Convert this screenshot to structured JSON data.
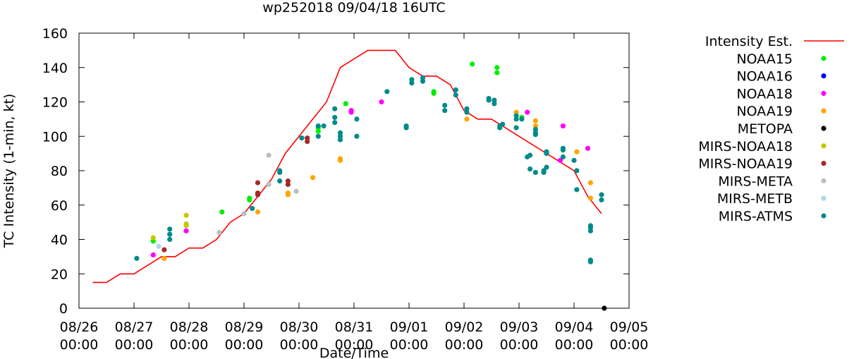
{
  "chart_data": {
    "type": "scatter",
    "title": "wp252018 09/04/18 16UTC",
    "xlabel": "Date/Time",
    "ylabel": "TC Intensity (1-min, kt)",
    "ylim": [
      0,
      160
    ],
    "yticks": [
      0,
      20,
      40,
      60,
      80,
      100,
      120,
      140,
      160
    ],
    "xlim": [
      0,
      10
    ],
    "x_unit": "days since 08/26 00:00",
    "xticks": [
      {
        "x": 0,
        "line1": "08/26",
        "line2": "00:00"
      },
      {
        "x": 1,
        "line1": "08/27",
        "line2": "00:00"
      },
      {
        "x": 2,
        "line1": "08/28",
        "line2": "00:00"
      },
      {
        "x": 3,
        "line1": "08/29",
        "line2": "00:00"
      },
      {
        "x": 4,
        "line1": "08/30",
        "line2": "00:00"
      },
      {
        "x": 5,
        "line1": "08/31",
        "line2": "00:00"
      },
      {
        "x": 6,
        "line1": "09/01",
        "line2": "00:00"
      },
      {
        "x": 7,
        "line1": "09/02",
        "line2": "00:00"
      },
      {
        "x": 8,
        "line1": "09/03",
        "line2": "00:00"
      },
      {
        "x": 9,
        "line1": "09/04",
        "line2": "00:00"
      },
      {
        "x": 10,
        "line1": "09/05",
        "line2": "00:00"
      }
    ],
    "grid": false,
    "legend_position": "right",
    "line_series": {
      "name": "Intensity Est.",
      "color": "#ff0000",
      "points": [
        [
          0.25,
          15
        ],
        [
          0.5,
          15
        ],
        [
          0.75,
          20
        ],
        [
          1.0,
          20
        ],
        [
          1.25,
          25
        ],
        [
          1.5,
          30
        ],
        [
          1.75,
          30
        ],
        [
          2.0,
          35
        ],
        [
          2.25,
          35
        ],
        [
          2.5,
          40
        ],
        [
          2.75,
          50
        ],
        [
          3.0,
          55
        ],
        [
          3.25,
          65
        ],
        [
          3.5,
          75
        ],
        [
          3.75,
          90
        ],
        [
          4.0,
          100
        ],
        [
          4.25,
          110
        ],
        [
          4.5,
          120
        ],
        [
          4.75,
          140
        ],
        [
          5.0,
          145
        ],
        [
          5.25,
          150
        ],
        [
          5.5,
          150
        ],
        [
          5.75,
          150
        ],
        [
          6.0,
          140
        ],
        [
          6.25,
          135
        ],
        [
          6.5,
          135
        ],
        [
          6.75,
          130
        ],
        [
          7.0,
          115
        ],
        [
          7.25,
          110
        ],
        [
          7.5,
          110
        ],
        [
          7.75,
          105
        ],
        [
          8.0,
          100
        ],
        [
          8.25,
          95
        ],
        [
          8.5,
          90
        ],
        [
          8.75,
          85
        ],
        [
          9.0,
          80
        ],
        [
          9.25,
          65
        ],
        [
          9.5,
          55
        ]
      ]
    },
    "series": [
      {
        "name": "NOAA15",
        "color": "#00ee00",
        "points": [
          [
            1.35,
            39
          ],
          [
            2.6,
            56
          ],
          [
            3.1,
            63
          ],
          [
            3.1,
            64
          ],
          [
            4.35,
            103
          ],
          [
            4.35,
            105
          ],
          [
            4.85,
            119
          ],
          [
            6.45,
            125
          ],
          [
            6.45,
            126
          ],
          [
            7.15,
            142
          ],
          [
            7.6,
            137
          ],
          [
            7.6,
            140
          ],
          [
            8.05,
            111
          ]
        ]
      },
      {
        "name": "NOAA16",
        "color": "#0000ff",
        "points": []
      },
      {
        "name": "NOAA18",
        "color": "#ff00ff",
        "points": [
          [
            1.35,
            31
          ],
          [
            1.95,
            45
          ],
          [
            4.95,
            114
          ],
          [
            4.95,
            115
          ],
          [
            5.5,
            120
          ],
          [
            8.15,
            114
          ],
          [
            8.75,
            86
          ],
          [
            8.8,
            106
          ],
          [
            9.25,
            93
          ]
        ]
      },
      {
        "name": "NOAA19",
        "color": "#ffa500",
        "points": [
          [
            1.55,
            29
          ],
          [
            3.25,
            56
          ],
          [
            3.8,
            66
          ],
          [
            3.8,
            67
          ],
          [
            4.25,
            76
          ],
          [
            4.75,
            86
          ],
          [
            4.75,
            87
          ],
          [
            7.05,
            110
          ],
          [
            7.95,
            114
          ],
          [
            8.3,
            106
          ],
          [
            8.3,
            109
          ],
          [
            9.05,
            91
          ],
          [
            9.3,
            64
          ],
          [
            9.3,
            73
          ]
        ]
      },
      {
        "name": "METOPA",
        "color": "#000000",
        "points": [
          [
            9.55,
            0
          ]
        ]
      },
      {
        "name": "MIRS-NOAA18",
        "color": "#c8c800",
        "points": [
          [
            1.35,
            41
          ],
          [
            1.95,
            48
          ],
          [
            1.95,
            49
          ],
          [
            1.95,
            54
          ]
        ]
      },
      {
        "name": "MIRS-NOAA19",
        "color": "#a52a2a",
        "points": [
          [
            1.55,
            34
          ],
          [
            3.25,
            66
          ],
          [
            3.25,
            67
          ],
          [
            3.25,
            73
          ],
          [
            3.8,
            72
          ],
          [
            3.8,
            74
          ],
          [
            4.15,
            97
          ],
          [
            4.15,
            99
          ]
        ]
      },
      {
        "name": "MIRS-META",
        "color": "#bebebe",
        "points": [
          [
            2.55,
            44
          ],
          [
            3.0,
            55
          ],
          [
            3.45,
            72
          ],
          [
            3.45,
            89
          ],
          [
            3.95,
            68
          ]
        ]
      },
      {
        "name": "MIRS-METB",
        "color": "#add8e6",
        "points": [
          [
            1.45,
            36
          ]
        ]
      },
      {
        "name": "MIRS-ATMS",
        "color": "#008b8b",
        "points": [
          [
            1.05,
            29
          ],
          [
            1.65,
            40
          ],
          [
            1.65,
            43
          ],
          [
            1.65,
            46
          ],
          [
            3.15,
            58
          ],
          [
            3.65,
            74
          ],
          [
            3.65,
            79
          ],
          [
            3.65,
            80
          ],
          [
            4.05,
            99
          ],
          [
            4.35,
            106
          ],
          [
            4.35,
            100
          ],
          [
            4.45,
            106
          ],
          [
            4.65,
            108
          ],
          [
            4.65,
            111
          ],
          [
            4.65,
            116
          ],
          [
            4.75,
            98
          ],
          [
            4.75,
            100
          ],
          [
            4.75,
            102
          ],
          [
            5.05,
            100
          ],
          [
            5.05,
            110
          ],
          [
            5.6,
            126
          ],
          [
            5.95,
            105
          ],
          [
            5.95,
            106
          ],
          [
            6.05,
            131
          ],
          [
            6.05,
            133
          ],
          [
            6.25,
            132
          ],
          [
            6.25,
            134
          ],
          [
            6.65,
            115
          ],
          [
            6.65,
            118
          ],
          [
            6.85,
            124
          ],
          [
            6.85,
            127
          ],
          [
            7.05,
            114
          ],
          [
            7.05,
            116
          ],
          [
            7.45,
            121
          ],
          [
            7.45,
            122
          ],
          [
            7.55,
            119
          ],
          [
            7.55,
            121
          ],
          [
            7.65,
            105
          ],
          [
            7.65,
            106
          ],
          [
            7.7,
            107
          ],
          [
            7.95,
            105
          ],
          [
            7.95,
            110
          ],
          [
            7.95,
            112
          ],
          [
            8.05,
            110
          ],
          [
            8.15,
            88
          ],
          [
            8.2,
            89
          ],
          [
            8.2,
            81
          ],
          [
            8.3,
            101
          ],
          [
            8.3,
            102
          ],
          [
            8.3,
            104
          ],
          [
            8.3,
            79
          ],
          [
            8.45,
            79
          ],
          [
            8.45,
            80
          ],
          [
            8.5,
            82
          ],
          [
            8.5,
            90
          ],
          [
            8.5,
            91
          ],
          [
            8.8,
            88
          ],
          [
            8.8,
            92
          ],
          [
            8.8,
            93
          ],
          [
            9.0,
            86
          ],
          [
            9.05,
            69
          ],
          [
            9.05,
            80
          ],
          [
            9.3,
            45
          ],
          [
            9.3,
            47
          ],
          [
            9.3,
            48
          ],
          [
            9.3,
            27
          ],
          [
            9.3,
            28
          ],
          [
            9.5,
            63
          ],
          [
            9.5,
            66
          ]
        ]
      }
    ]
  }
}
